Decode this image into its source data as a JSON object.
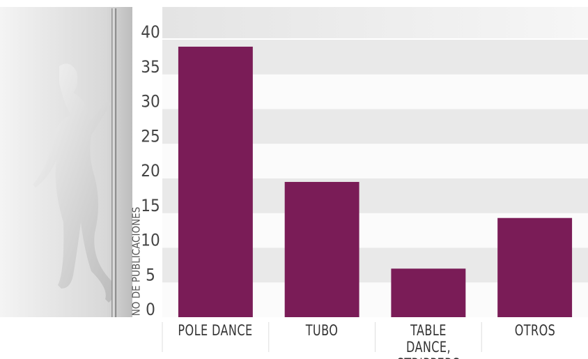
{
  "chart_data": {
    "type": "bar",
    "y_label": "NO DE PUBLICACIONES",
    "categories": [
      "POLE DANCE",
      "TUBO",
      "TABLE DANCE, STRIPPERS",
      "OTROS"
    ],
    "values": [
      39,
      19.5,
      7,
      14.3
    ],
    "color": "#7a1c57",
    "ylim": [
      0,
      40
    ],
    "yticks": [
      0,
      5,
      10,
      15,
      20,
      25,
      30,
      35,
      40
    ],
    "grid": true
  }
}
